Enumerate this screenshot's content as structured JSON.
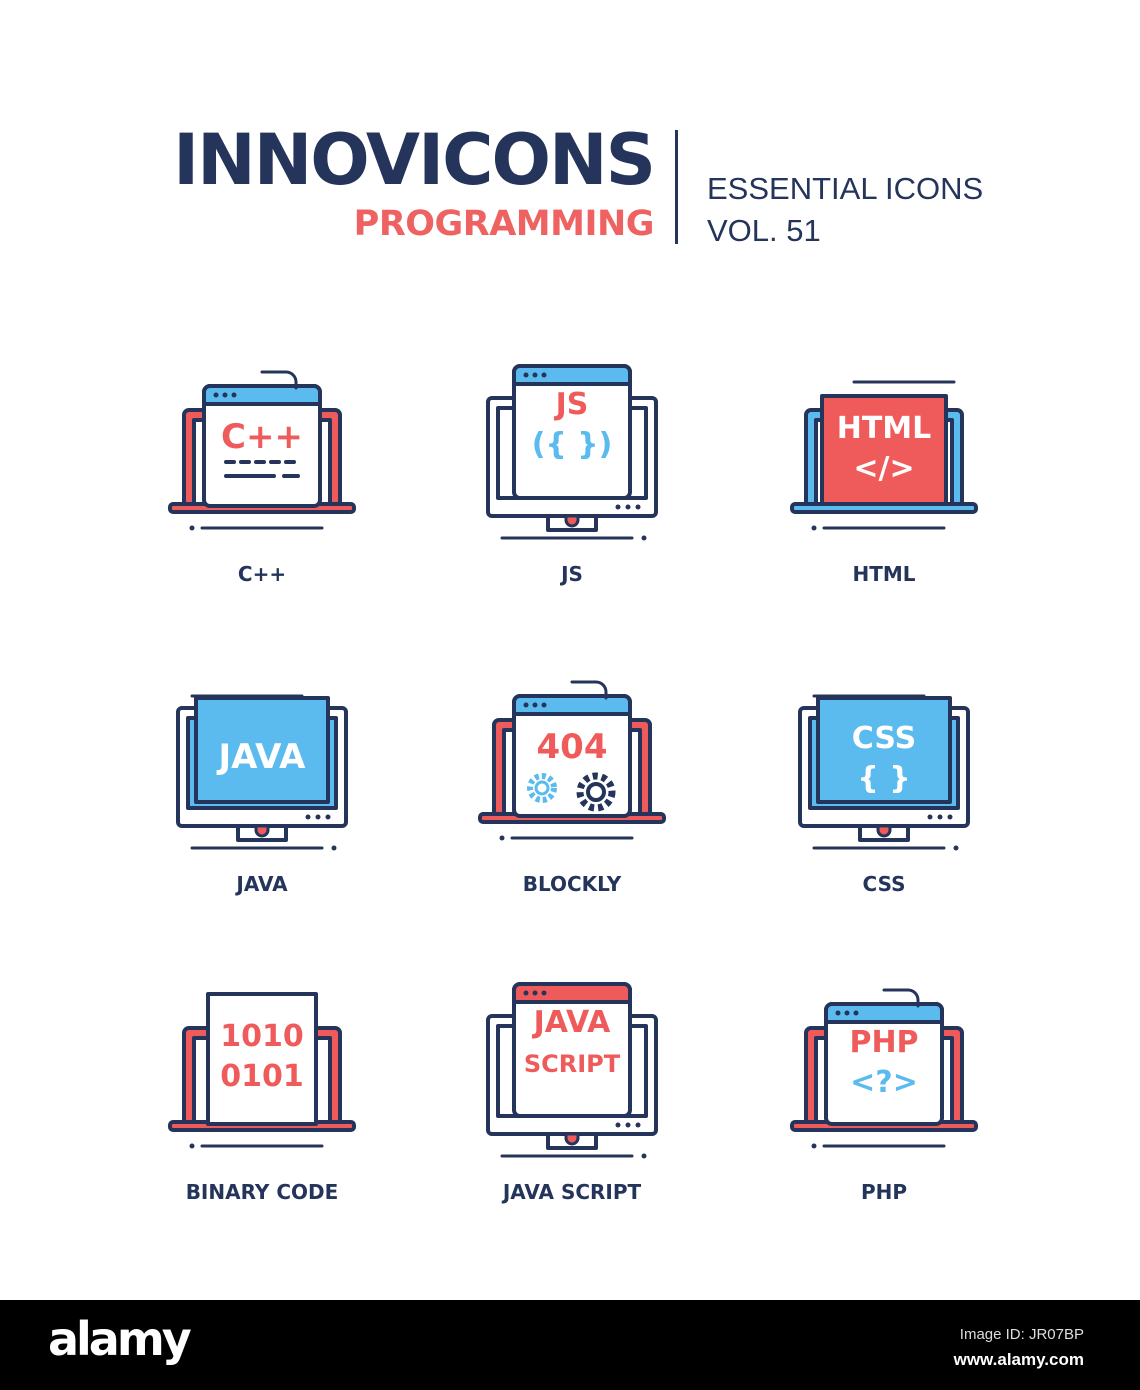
{
  "header": {
    "brand": "INNOVICONS",
    "subtitle": "PROGRAMMING",
    "tagline_line1": "ESSENTIAL ICONS",
    "tagline_line2": "VOL. 51"
  },
  "colors": {
    "navy": "#24345a",
    "red": "#ef5b5b",
    "blue": "#5bbbef",
    "white": "#ffffff"
  },
  "icons": [
    {
      "label": "C++",
      "device": "laptop-window",
      "base": "red",
      "bar": "blue",
      "lines": [
        {
          "text": "C++",
          "color": "red"
        }
      ],
      "extra": "dashes"
    },
    {
      "label": "JS",
      "device": "monitor-window",
      "bar": "blue",
      "lines": [
        {
          "text": "JS",
          "color": "red"
        },
        {
          "text": "({ })",
          "color": "blue"
        }
      ]
    },
    {
      "label": "HTML",
      "device": "laptop-screen",
      "base": "blue",
      "screen": "red",
      "lines": [
        {
          "text": "HTML",
          "color": "white"
        },
        {
          "text": "</>",
          "color": "white"
        }
      ]
    },
    {
      "label": "JAVA",
      "device": "monitor-screen",
      "screen": "blue",
      "lines": [
        {
          "text": "JAVA",
          "color": "white"
        }
      ]
    },
    {
      "label": "BLOCKLY",
      "device": "laptop-window",
      "base": "red",
      "bar": "blue",
      "lines": [
        {
          "text": "404",
          "color": "red"
        }
      ],
      "extra": "gears"
    },
    {
      "label": "CSS",
      "device": "monitor-screen",
      "screen": "blue",
      "lines": [
        {
          "text": "CSS",
          "color": "white"
        },
        {
          "text": "{ }",
          "color": "white"
        }
      ]
    },
    {
      "label": "BINARY CODE",
      "device": "laptop-paper",
      "base": "red",
      "lines": [
        {
          "text": "1010",
          "color": "red"
        },
        {
          "text": "0101",
          "color": "red"
        }
      ]
    },
    {
      "label": "JAVA SCRIPT",
      "device": "monitor-window",
      "bar": "red",
      "lines": [
        {
          "text": "JAVA",
          "color": "red"
        },
        {
          "text": "SCRIPT",
          "color": "red"
        }
      ]
    },
    {
      "label": "PHP",
      "device": "laptop-window",
      "base": "red",
      "bar": "blue",
      "lines": [
        {
          "text": "PHP",
          "color": "red"
        },
        {
          "text": "<?>",
          "color": "blue"
        }
      ]
    }
  ],
  "footer": {
    "logo": "alamy",
    "image_id": "Image ID: JR07BP",
    "url": "www.alamy.com"
  }
}
